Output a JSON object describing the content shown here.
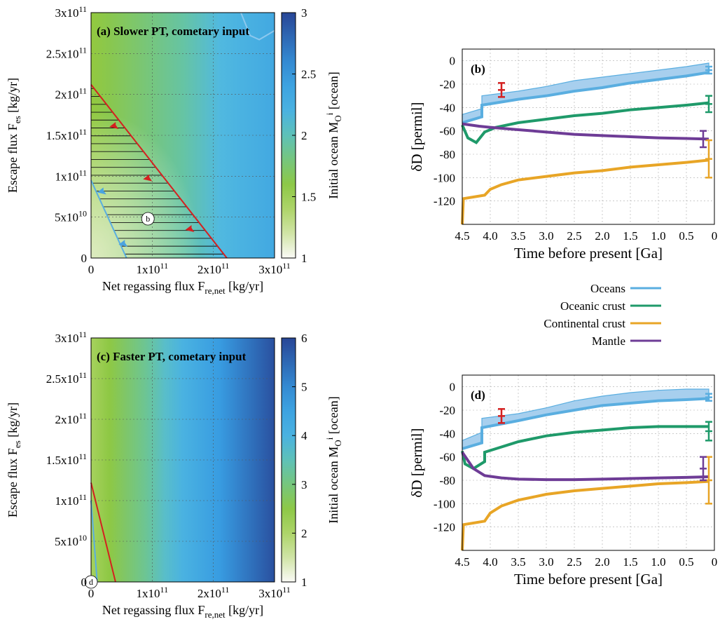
{
  "legend": {
    "entries": [
      {
        "name": "Oceans",
        "color": "#5aaee0"
      },
      {
        "name": "Oceanic crust",
        "color": "#1f9a6a"
      },
      {
        "name": "Continental crust",
        "color": "#e8a526"
      },
      {
        "name": "Mantle",
        "color": "#6e3c96"
      }
    ]
  },
  "chart_data": [
    {
      "id": "a",
      "type": "heatmap",
      "title": "(a) Slower PT, cometary input",
      "xlabel": "Net regassing flux F",
      "xlabel_sub": "re,net",
      "xlabel_unit": "[kg/yr]",
      "ylabel": "Escape flux F",
      "ylabel_sub": "es",
      "ylabel_unit": "[kg/yr]",
      "xlim": [
        0,
        300000000000.0
      ],
      "ylim": [
        0,
        300000000000.0
      ],
      "xticks": [
        {
          "v": 0,
          "m": "0",
          "e": ""
        },
        {
          "v": 100000000000.0,
          "m": "1x10",
          "e": "11"
        },
        {
          "v": 200000000000.0,
          "m": "2x10",
          "e": "11"
        },
        {
          "v": 300000000000.0,
          "m": "3x10",
          "e": "11"
        }
      ],
      "yticks": [
        {
          "v": 0,
          "m": "0",
          "e": ""
        },
        {
          "v": 50000000000.0,
          "m": "5x10",
          "e": "10"
        },
        {
          "v": 100000000000.0,
          "m": "1x10",
          "e": "11"
        },
        {
          "v": 150000000000.0,
          "m": "1.5x10",
          "e": "11"
        },
        {
          "v": 200000000000.0,
          "m": "2x10",
          "e": "11"
        },
        {
          "v": 250000000000.0,
          "m": "2.5x10",
          "e": "11"
        },
        {
          "v": 300000000000.0,
          "m": "3x10",
          "e": "11"
        }
      ],
      "colorbar": {
        "label": "Initial ocean M",
        "label_sub": "O",
        "label_sup": "i",
        "label_unit": "[ocean]",
        "range": [
          1,
          3
        ],
        "ticks": [
          {
            "v": 1,
            "t": "1"
          },
          {
            "v": 1.5,
            "t": "1.5"
          },
          {
            "v": 2,
            "t": "2"
          },
          {
            "v": 2.5,
            "t": "2.5"
          },
          {
            "v": 3,
            "t": "3"
          }
        ]
      },
      "field": {
        "base": 1.55,
        "coef": 2.6e-12,
        "corner_low": 1.1
      },
      "red_line": [
        [
          0,
          212000000000.0
        ],
        [
          222000000000.0,
          0
        ]
      ],
      "blue_line": [
        [
          0,
          95000000000.0
        ],
        [
          58000000000.0,
          0
        ]
      ],
      "blue_top": [
        [
          245000000000.0,
          300000000000.0
        ],
        [
          260000000000.0,
          272000000000.0
        ],
        [
          275000000000.0,
          267000000000.0
        ],
        [
          300000000000.0,
          278000000000.0
        ]
      ],
      "red_arrows": [
        [
          38000000000.0,
          162000000000.0
        ],
        [
          93000000000.0,
          98000000000.0
        ],
        [
          162000000000.0,
          36000000000.0
        ]
      ],
      "blue_arrows": [
        [
          18000000000.0,
          82000000000.0
        ],
        [
          53000000000.0,
          18000000000.0
        ],
        [
          247000000000.0,
          278000000000.0
        ]
      ],
      "hatch": true,
      "marker": {
        "label": "b",
        "x": 93000000000.0,
        "y": 48000000000.0
      }
    },
    {
      "id": "c",
      "type": "heatmap",
      "title": "(c) Faster PT, cometary input",
      "xlabel": "Net regassing flux F",
      "xlabel_sub": "re,net",
      "xlabel_unit": "[kg/yr]",
      "ylabel": "Escape flux F",
      "ylabel_sub": "es",
      "ylabel_unit": "[kg/yr]",
      "xlim": [
        0,
        300000000000.0
      ],
      "ylim": [
        0,
        300000000000.0
      ],
      "xticks": [
        {
          "v": 0,
          "m": "0",
          "e": ""
        },
        {
          "v": 100000000000.0,
          "m": "1x10",
          "e": "11"
        },
        {
          "v": 200000000000.0,
          "m": "2x10",
          "e": "11"
        },
        {
          "v": 300000000000.0,
          "m": "3x10",
          "e": "11"
        }
      ],
      "yticks": [
        {
          "v": 0,
          "m": "0",
          "e": ""
        },
        {
          "v": 50000000000.0,
          "m": "5x10",
          "e": "10"
        },
        {
          "v": 100000000000.0,
          "m": "1x10",
          "e": "11"
        },
        {
          "v": 150000000000.0,
          "m": "1.5x10",
          "e": "11"
        },
        {
          "v": 200000000000.0,
          "m": "2x10",
          "e": "11"
        },
        {
          "v": 250000000000.0,
          "m": "2.5x10",
          "e": "11"
        },
        {
          "v": 300000000000.0,
          "m": "3x10",
          "e": "11"
        }
      ],
      "colorbar": {
        "label": "Initial ocean M",
        "label_sub": "O",
        "label_sup": "i",
        "label_unit": "[ocean]",
        "range": [
          1,
          6
        ],
        "ticks": [
          {
            "v": 1,
            "t": "1"
          },
          {
            "v": 2,
            "t": "2"
          },
          {
            "v": 3,
            "t": "3"
          },
          {
            "v": 4,
            "t": "4"
          },
          {
            "v": 5,
            "t": "5"
          },
          {
            "v": 6,
            "t": "6"
          }
        ]
      },
      "field": {
        "base": 2.1,
        "coef": 1.25e-11,
        "corner_low": 0
      },
      "red_line": [
        [
          0,
          122000000000.0
        ],
        [
          40000000000.0,
          0
        ]
      ],
      "blue_line": [
        [
          0,
          100000000000.0
        ],
        [
          10000000000.0,
          0
        ]
      ],
      "blue_top": [],
      "red_arrows": [],
      "blue_arrows": [],
      "hatch": false,
      "marker": {
        "label": "d",
        "x": 0,
        "y": 0
      }
    },
    {
      "id": "b",
      "type": "line",
      "label": "(b)",
      "xlabel": "Time before present [Ga]",
      "ylabel": "δD [permil]",
      "xlim": [
        4.5,
        0
      ],
      "ylim": [
        -140,
        10
      ],
      "xticks": [
        "4.5",
        "4.0",
        "3.5",
        "3.0",
        "2.5",
        "2.0",
        "1.5",
        "1.0",
        "0.5",
        "0"
      ],
      "yticks": [
        "0",
        "-20",
        "-40",
        "-60",
        "-80",
        "-100",
        "-120"
      ],
      "band": {
        "x": [
          4.5,
          4.15,
          4.15,
          3.5,
          3.0,
          2.5,
          2.0,
          1.5,
          1.0,
          0.5,
          0.1
        ],
        "upper": [
          -46,
          -41,
          -30,
          -26,
          -22,
          -17,
          -14,
          -11,
          -8,
          -5,
          -2
        ],
        "lower": [
          -53,
          -48,
          -38,
          -33,
          -30,
          -26,
          -23,
          -19,
          -16,
          -13,
          -10
        ]
      },
      "series": [
        {
          "name": "Oceans",
          "color": "#5aaee0",
          "x": [
            4.5,
            4.15,
            4.15,
            3.5,
            3.0,
            2.5,
            2.0,
            1.5,
            1.0,
            0.5,
            0.1
          ],
          "y": [
            -53,
            -48,
            -38,
            -33,
            -30,
            -26,
            -23,
            -19,
            -16,
            -13,
            -10
          ]
        },
        {
          "name": "Oceanic crust",
          "color": "#1f9a6a",
          "x": [
            4.5,
            4.4,
            4.25,
            4.1,
            3.9,
            3.5,
            3.0,
            2.5,
            2.0,
            1.5,
            1.0,
            0.5,
            0.1
          ],
          "y": [
            -55,
            -66,
            -70,
            -61,
            -57,
            -53,
            -50,
            -47,
            -45,
            -42,
            -40,
            -38,
            -36
          ]
        },
        {
          "name": "Continental crust",
          "color": "#e8a526",
          "x": [
            4.5,
            4.48,
            4.1,
            4.0,
            3.8,
            3.5,
            3.0,
            2.5,
            2.0,
            1.5,
            1.0,
            0.5,
            0.1
          ],
          "y": [
            -140,
            -118,
            -115,
            -110,
            -106,
            -102,
            -99,
            -96,
            -94,
            -91,
            -89,
            -87,
            -85
          ]
        },
        {
          "name": "Mantle",
          "color": "#6e3c96",
          "x": [
            4.5,
            4.2,
            4.0,
            3.5,
            3.0,
            2.5,
            2.0,
            1.5,
            1.0,
            0.5,
            0.1
          ],
          "y": [
            -54,
            -56,
            -57,
            -59,
            -61,
            -63,
            -64,
            -65,
            -66,
            -66.5,
            -67
          ]
        }
      ],
      "error_bars": [
        {
          "x": 3.8,
          "y": -25,
          "err": 6,
          "color": "#d42020"
        },
        {
          "x": 0.1,
          "y": -8,
          "err": 3,
          "color": "#5aaee0"
        },
        {
          "x": 0.1,
          "y": -37,
          "err": 7,
          "color": "#1f9a6a"
        },
        {
          "x": 0.1,
          "y": -84,
          "err": 16,
          "color": "#e8a526"
        },
        {
          "x": 0.2,
          "y": -67,
          "err": 7,
          "color": "#6e3c96"
        }
      ]
    },
    {
      "id": "d",
      "type": "line",
      "label": "(d)",
      "xlabel": "Time before present [Ga]",
      "ylabel": "δD [permil]",
      "xlim": [
        4.5,
        0
      ],
      "ylim": [
        -140,
        10
      ],
      "xticks": [
        "4.5",
        "4.0",
        "3.5",
        "3.0",
        "2.5",
        "2.0",
        "1.5",
        "1.0",
        "0.5",
        "0"
      ],
      "yticks": [
        "0",
        "-20",
        "-40",
        "-60",
        "-80",
        "-100",
        "-120"
      ],
      "band": {
        "x": [
          4.5,
          4.15,
          4.15,
          3.5,
          3.0,
          2.5,
          2.0,
          1.5,
          1.0,
          0.5,
          0.1
        ],
        "upper": [
          -46,
          -39,
          -27,
          -23,
          -18,
          -12,
          -8,
          -5,
          -3,
          -2,
          -2
        ],
        "lower": [
          -53,
          -48,
          -35,
          -29,
          -24,
          -20,
          -16,
          -14,
          -12,
          -11,
          -10
        ]
      },
      "series": [
        {
          "name": "Oceans",
          "color": "#5aaee0",
          "x": [
            4.5,
            4.15,
            4.15,
            3.5,
            3.0,
            2.5,
            2.0,
            1.5,
            1.0,
            0.5,
            0.1
          ],
          "y": [
            -53,
            -48,
            -35,
            -29,
            -24,
            -20,
            -16,
            -14,
            -12,
            -11,
            -10
          ]
        },
        {
          "name": "Oceanic crust",
          "color": "#1f9a6a",
          "x": [
            4.5,
            4.45,
            4.3,
            4.1,
            4.1,
            3.9,
            3.5,
            3.0,
            2.5,
            2.0,
            1.5,
            1.0,
            0.5,
            0.1
          ],
          "y": [
            -55,
            -66,
            -70,
            -64,
            -56,
            -53,
            -47,
            -42,
            -39,
            -37,
            -35,
            -34,
            -34,
            -34
          ]
        },
        {
          "name": "Continental crust",
          "color": "#e8a526",
          "x": [
            4.5,
            4.48,
            4.1,
            4.0,
            3.8,
            3.5,
            3.0,
            2.5,
            2.0,
            1.5,
            1.0,
            0.5,
            0.1
          ],
          "y": [
            -140,
            -118,
            -115,
            -108,
            -102,
            -97,
            -92,
            -89,
            -87,
            -85,
            -83,
            -82,
            -81
          ]
        },
        {
          "name": "Mantle",
          "color": "#6e3c96",
          "x": [
            4.5,
            4.3,
            4.1,
            3.8,
            3.5,
            3.0,
            2.5,
            2.0,
            1.5,
            1.0,
            0.5,
            0.1
          ],
          "y": [
            -56,
            -70,
            -76,
            -78,
            -79,
            -79.5,
            -79.5,
            -79,
            -78.5,
            -78,
            -77.5,
            -77
          ]
        }
      ],
      "error_bars": [
        {
          "x": 3.8,
          "y": -25,
          "err": 6,
          "color": "#d42020"
        },
        {
          "x": 0.1,
          "y": -9,
          "err": 3,
          "color": "#5aaee0"
        },
        {
          "x": 0.1,
          "y": -38,
          "err": 8,
          "color": "#1f9a6a"
        },
        {
          "x": 0.1,
          "y": -80,
          "err": 20,
          "color": "#e8a526"
        },
        {
          "x": 0.2,
          "y": -70,
          "err": 10,
          "color": "#6e3c96"
        }
      ]
    }
  ]
}
